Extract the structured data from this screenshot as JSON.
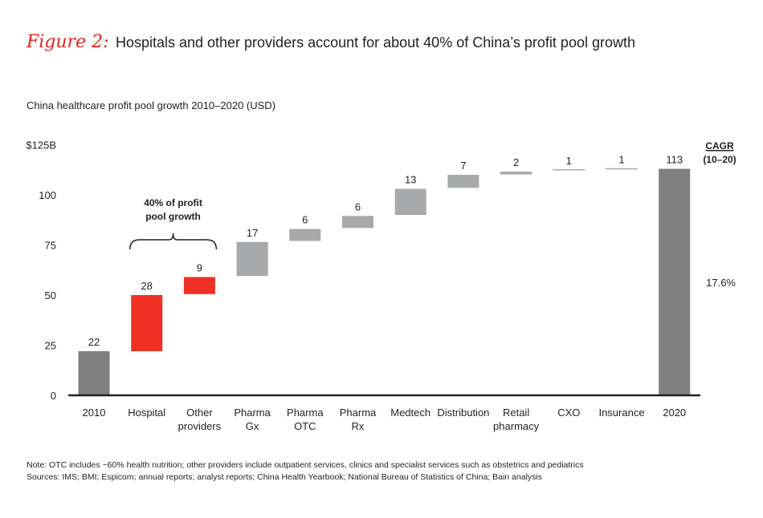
{
  "figure_label": "Figure 2:",
  "title": "Hospitals and other providers account for about 40% of China’s profit pool growth",
  "subtitle": "China healthcare profit pool growth 2010–2020 (USD)",
  "notes": {
    "note": "Note: OTC includes ~60% health nutrition; other providers include outpatient services, clinics and specialist services such as obstetrics and pediatrics",
    "sources": "Sources: IMS; BMI; Espicom; annual reports; analyst reports; China Health Yearbook; National Bureau of Statistics of China; Bain analysis"
  },
  "colors": {
    "highlight": "#ee3124",
    "light": "#a8a9ab",
    "total": "#7f7f80",
    "axis": "#231f20"
  },
  "chart_data": {
    "type": "waterfall",
    "ylim": [
      0,
      125
    ],
    "yticks": [
      "0",
      "25",
      "50",
      "75",
      "100",
      "$125B"
    ],
    "ytick_values": [
      0,
      25,
      50,
      75,
      100,
      125
    ],
    "categories": [
      [
        "2010"
      ],
      [
        "Hospital"
      ],
      [
        "Other",
        "providers"
      ],
      [
        "Pharma",
        "Gx"
      ],
      [
        "Pharma",
        "OTC"
      ],
      [
        "Pharma",
        "Rx"
      ],
      [
        "Medtech"
      ],
      [
        "Distribution"
      ],
      [
        "Retail",
        "pharmacy"
      ],
      [
        "CXO"
      ],
      [
        "Insurance"
      ],
      [
        "2020"
      ]
    ],
    "bars": [
      {
        "label": "22",
        "start": 0,
        "end": 22,
        "kind": "total"
      },
      {
        "label": "28",
        "start": 22,
        "end": 50,
        "kind": "highlight"
      },
      {
        "label": "9",
        "start": 50.5,
        "end": 59,
        "kind": "highlight"
      },
      {
        "label": "17",
        "start": 59.5,
        "end": 76.5,
        "kind": "light"
      },
      {
        "label": "6",
        "start": 77,
        "end": 83,
        "kind": "light"
      },
      {
        "label": "6",
        "start": 83.5,
        "end": 89.5,
        "kind": "light"
      },
      {
        "label": "13",
        "start": 90,
        "end": 103,
        "kind": "light"
      },
      {
        "label": "7",
        "start": 103.5,
        "end": 110,
        "kind": "light"
      },
      {
        "label": "2",
        "start": 110.2,
        "end": 111.6,
        "kind": "light"
      },
      {
        "label": "1",
        "start": 112,
        "end": 112.5,
        "kind": "line"
      },
      {
        "label": "1",
        "start": 112.5,
        "end": 113,
        "kind": "line"
      },
      {
        "label": "113",
        "start": 0,
        "end": 113,
        "kind": "total"
      }
    ],
    "annotation": {
      "lines": [
        "40% of profit",
        "pool growth"
      ],
      "spans": [
        "Hospital",
        "Other providers"
      ]
    },
    "cagr": {
      "header": [
        "CAGR",
        "(10–20)"
      ],
      "value": "17.6%"
    }
  }
}
